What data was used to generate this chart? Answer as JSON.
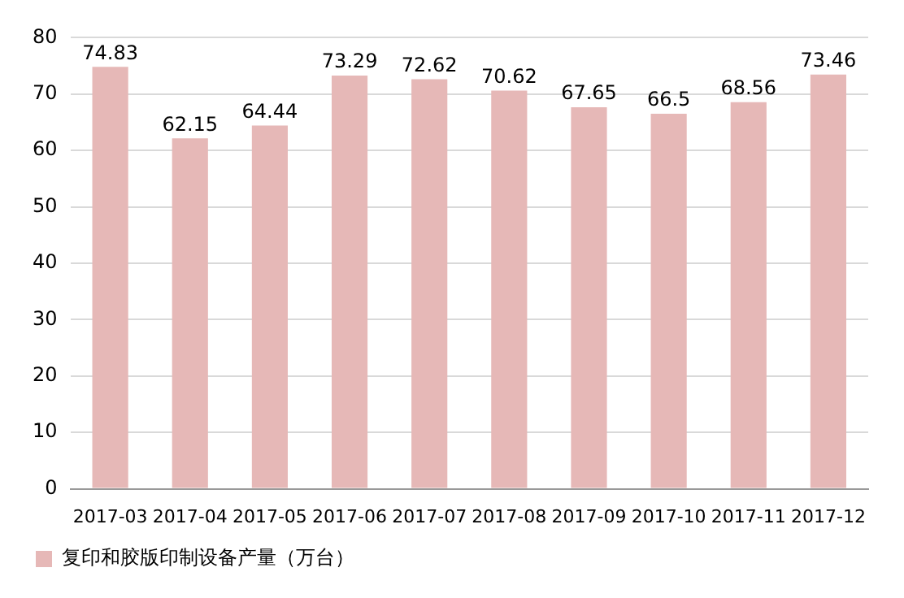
{
  "chart_data": {
    "type": "bar",
    "categories": [
      "2017-03",
      "2017-04",
      "2017-05",
      "2017-06",
      "2017-07",
      "2017-08",
      "2017-09",
      "2017-10",
      "2017-11",
      "2017-12"
    ],
    "series": [
      {
        "name": "复印和胶版印制设备产量（万台）",
        "color": "#e6b8b7",
        "values": [
          74.83,
          62.15,
          64.44,
          73.29,
          72.62,
          70.62,
          67.65,
          66.5,
          68.56,
          73.46
        ]
      }
    ],
    "ylim": [
      0,
      80
    ],
    "yticks": [
      0,
      10,
      20,
      30,
      40,
      50,
      60,
      70,
      80
    ],
    "grid": "y",
    "legend": "bottom",
    "data_labels": true
  }
}
